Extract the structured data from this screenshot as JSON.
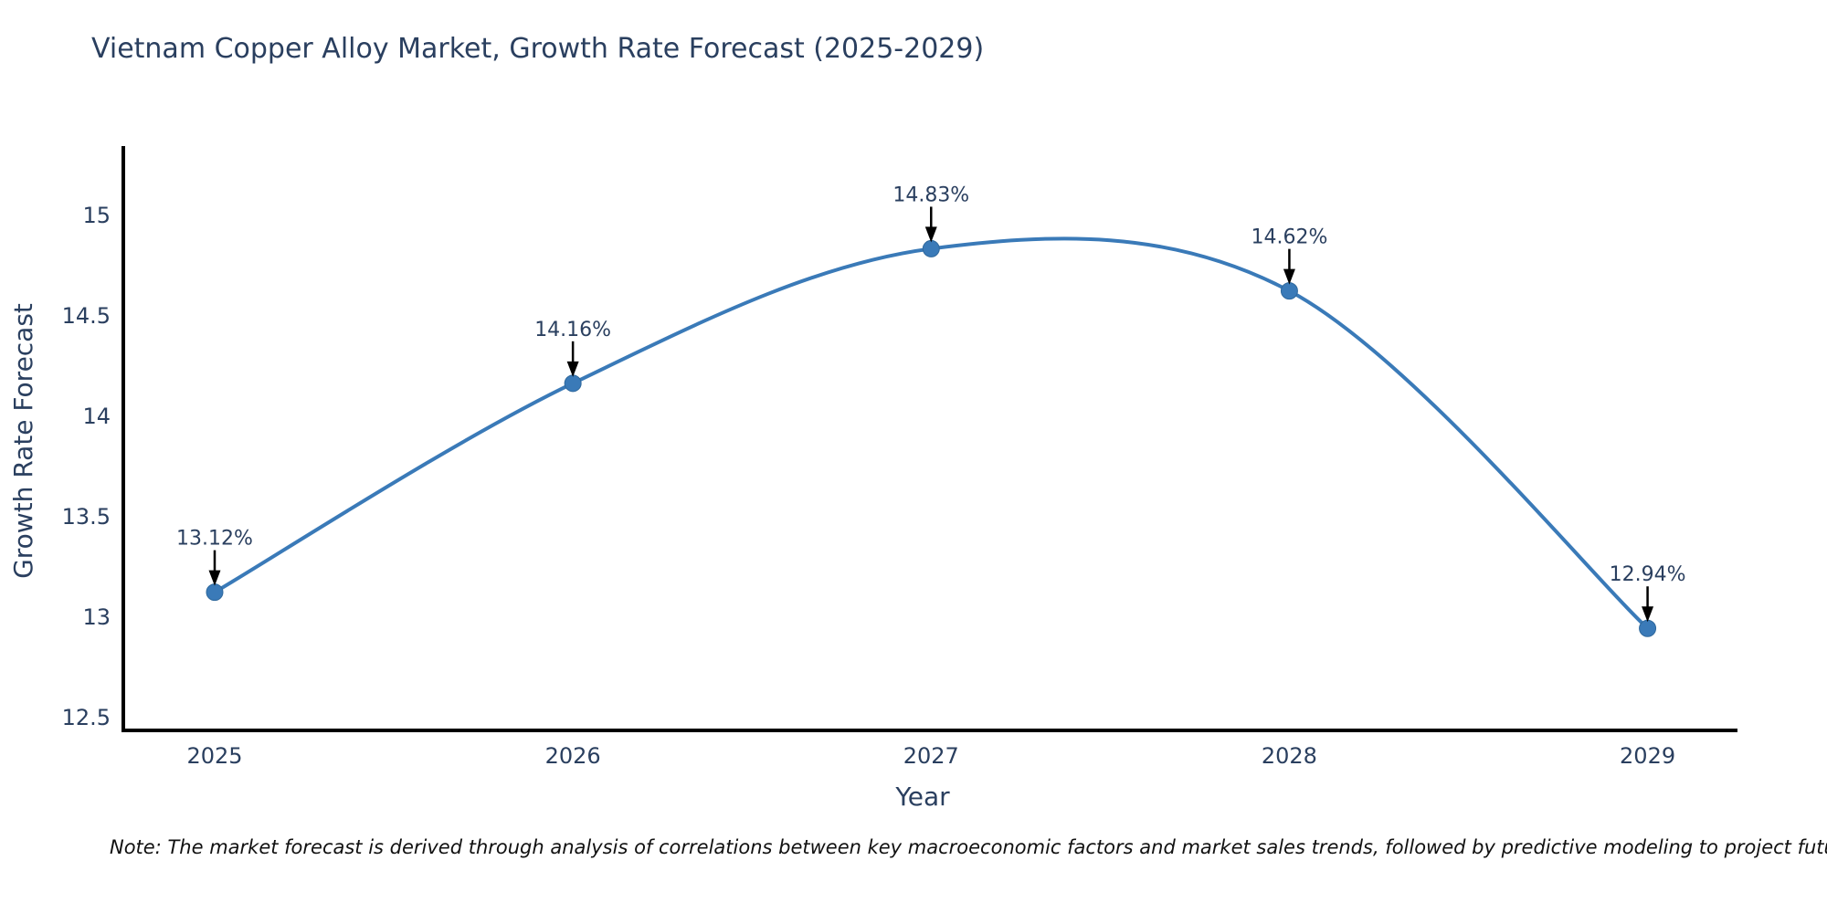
{
  "title": "Vietnam Copper Alloy Market, Growth Rate Forecast (2025-2029)",
  "note": "Note: The market forecast is derived through analysis of correlations between key macroeconomic factors and market sales trends, followed by predictive modeling to project future sales.",
  "colors": {
    "line": "#3a7ab8",
    "marker": "#3a7ab8",
    "marker_edge": "#2f689c",
    "axis_line": "#000000",
    "annotation_arrow": "#000000",
    "text": "#2a3f5f",
    "note_text": "#111111",
    "background": "#ffffff"
  },
  "chart_data": {
    "type": "line",
    "line_shape": "spline",
    "title": "Vietnam Copper Alloy Market, Growth Rate Forecast (2025-2029)",
    "xlabel": "Year",
    "ylabel": "Growth Rate Forecast",
    "x": [
      2025,
      2026,
      2027,
      2028,
      2029
    ],
    "series": [
      {
        "name": "Growth Rate Forecast",
        "values": [
          13.12,
          14.16,
          14.83,
          14.62,
          12.94
        ]
      }
    ],
    "point_labels": [
      "13.12%",
      "14.16%",
      "14.83%",
      "14.62%",
      "12.94%"
    ],
    "x_tick_labels": [
      "2025",
      "2026",
      "2027",
      "2028",
      "2029"
    ],
    "y_ticks": [
      12.5,
      13,
      13.5,
      14,
      14.5,
      15
    ],
    "y_tick_labels": [
      "12.5",
      "13",
      "13.5",
      "14",
      "14.5",
      "15"
    ],
    "xlim": [
      2024.745,
      2029.251
    ],
    "ylim": [
      12.432,
      15.341
    ],
    "grid": false,
    "legend": "none",
    "markers": true,
    "annotations_with_arrows": true
  }
}
